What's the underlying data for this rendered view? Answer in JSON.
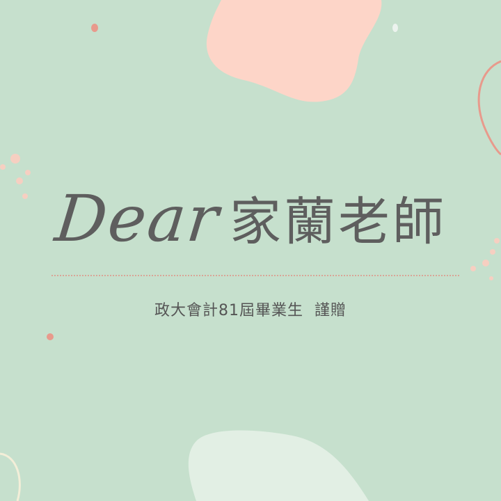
{
  "card": {
    "greeting_script": "Dear",
    "recipient": "家蘭老師",
    "sender_line": "政大會計81屆畢業生  謹贈"
  },
  "colors": {
    "background": "#c6e0cd",
    "peach_blob": "#fdd5c8",
    "light_blob": "#e2efe4",
    "coral_accent": "#e89a8c",
    "text": "#5e5e5e",
    "divider": "#d9a596"
  }
}
